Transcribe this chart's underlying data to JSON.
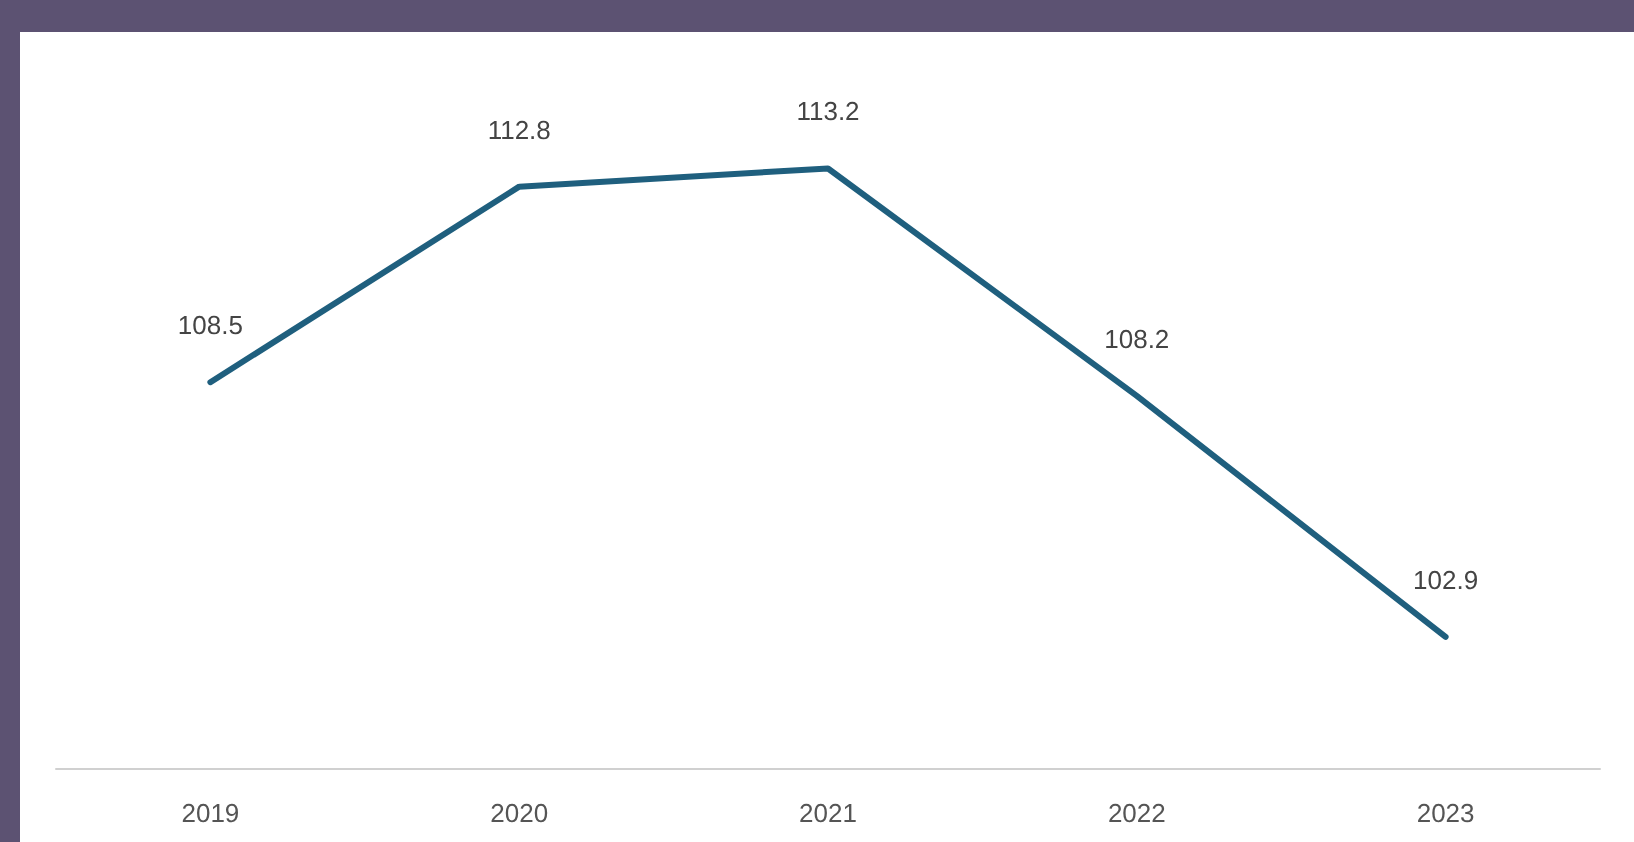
{
  "chart_data": {
    "type": "line",
    "categories": [
      "2019",
      "2020",
      "2021",
      "2022",
      "2023"
    ],
    "series": [
      {
        "color": "#1f5f7e",
        "values": [
          108.5,
          112.8,
          113.2,
          108.2,
          102.9
        ]
      }
    ],
    "data_labels": true,
    "grid": false,
    "marker": "none",
    "line_style": "solid"
  }
}
